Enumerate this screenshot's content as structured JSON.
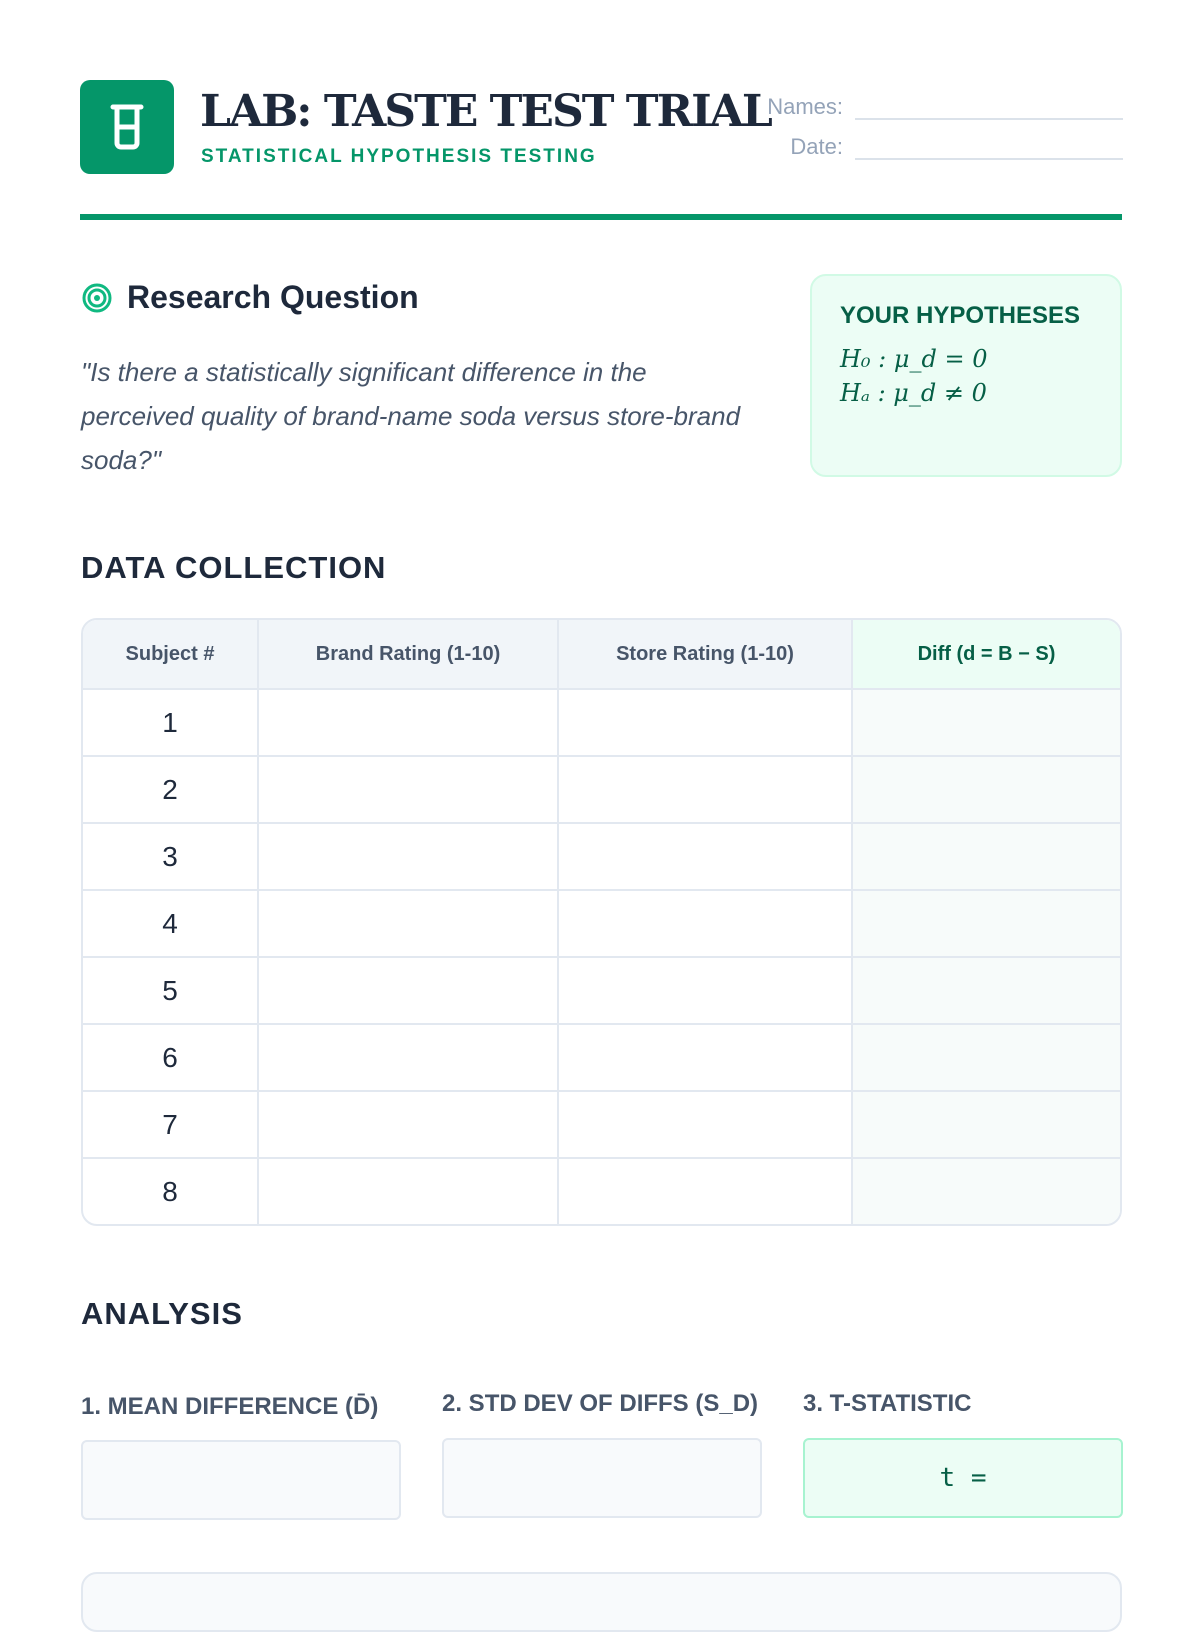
{
  "header": {
    "title": "LAB: TASTE TEST TRIAL",
    "subtitle": "STATISTICAL HYPOTHESIS TESTING",
    "names_label": "Names:",
    "date_label": "Date:",
    "logo_icon": "beaker-icon",
    "accent": "#059669"
  },
  "research": {
    "icon": "target-icon",
    "title": "Research Question",
    "question": "\"Is there a statistically significant difference in the perceived quality of brand-name soda versus store-brand soda?\""
  },
  "hypotheses": {
    "title": "YOUR HYPOTHESES",
    "h0": "H₀ : μ_d = 0",
    "ha": "Hₐ : μ_d ≠ 0"
  },
  "data_collection": {
    "title": "DATA COLLECTION",
    "columns": [
      "Subject #",
      "Brand Rating (1-10)",
      "Store Rating (1-10)",
      "Diff (d = B − S)"
    ],
    "rows": [
      "1",
      "2",
      "3",
      "4",
      "5",
      "6",
      "7",
      "8"
    ]
  },
  "analysis": {
    "title": "ANALYSIS",
    "fields": [
      {
        "label": "1. MEAN DIFFERENCE (D̄)",
        "value": ""
      },
      {
        "label": "2. STD DEV OF DIFFS (S_D)",
        "value": ""
      },
      {
        "label": "3. T-STATISTIC",
        "value": "t ="
      }
    ]
  }
}
